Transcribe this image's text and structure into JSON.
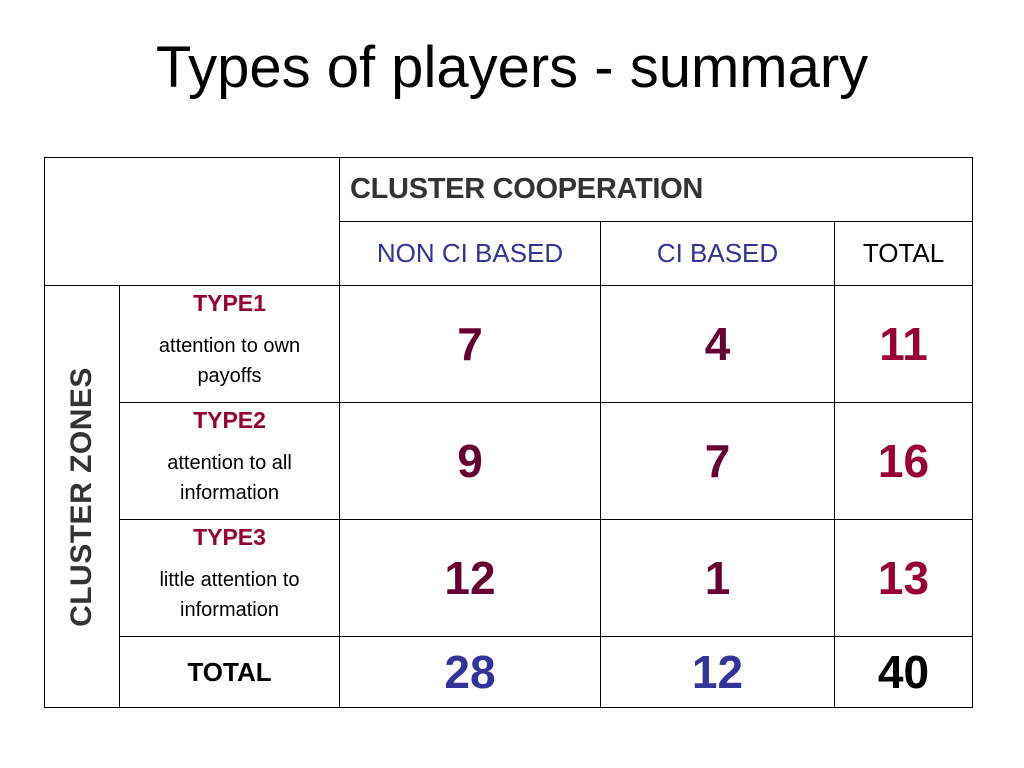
{
  "slide": {
    "title": "Types of players - summary"
  },
  "table": {
    "group_header": "CLUSTER COOPERATION",
    "column_headers": [
      "NON CI BASED",
      "CI BASED",
      "TOTAL"
    ],
    "row_group_label": "CLUSTER ZONES",
    "rows": [
      {
        "type": "TYPE1",
        "desc_line1": "attention to own",
        "desc_line2": "payoffs",
        "non_ci": "7",
        "ci": "4",
        "total": "11"
      },
      {
        "type": "TYPE2",
        "desc_line1": "attention to all",
        "desc_line2": "information",
        "non_ci": "9",
        "ci": "7",
        "total": "16"
      },
      {
        "type": "TYPE3",
        "desc_line1": "little attention to",
        "desc_line2": "information",
        "non_ci": "12",
        "ci": "1",
        "total": "13"
      }
    ],
    "total_row": {
      "label": "TOTAL",
      "non_ci": "28",
      "ci": "12",
      "total": "40"
    },
    "colors": {
      "type_name": "#990033",
      "cell_value": "#660033",
      "row_total": "#990033",
      "column_header": "#333399",
      "column_total": "#333399",
      "header_gray": "#333333"
    }
  }
}
